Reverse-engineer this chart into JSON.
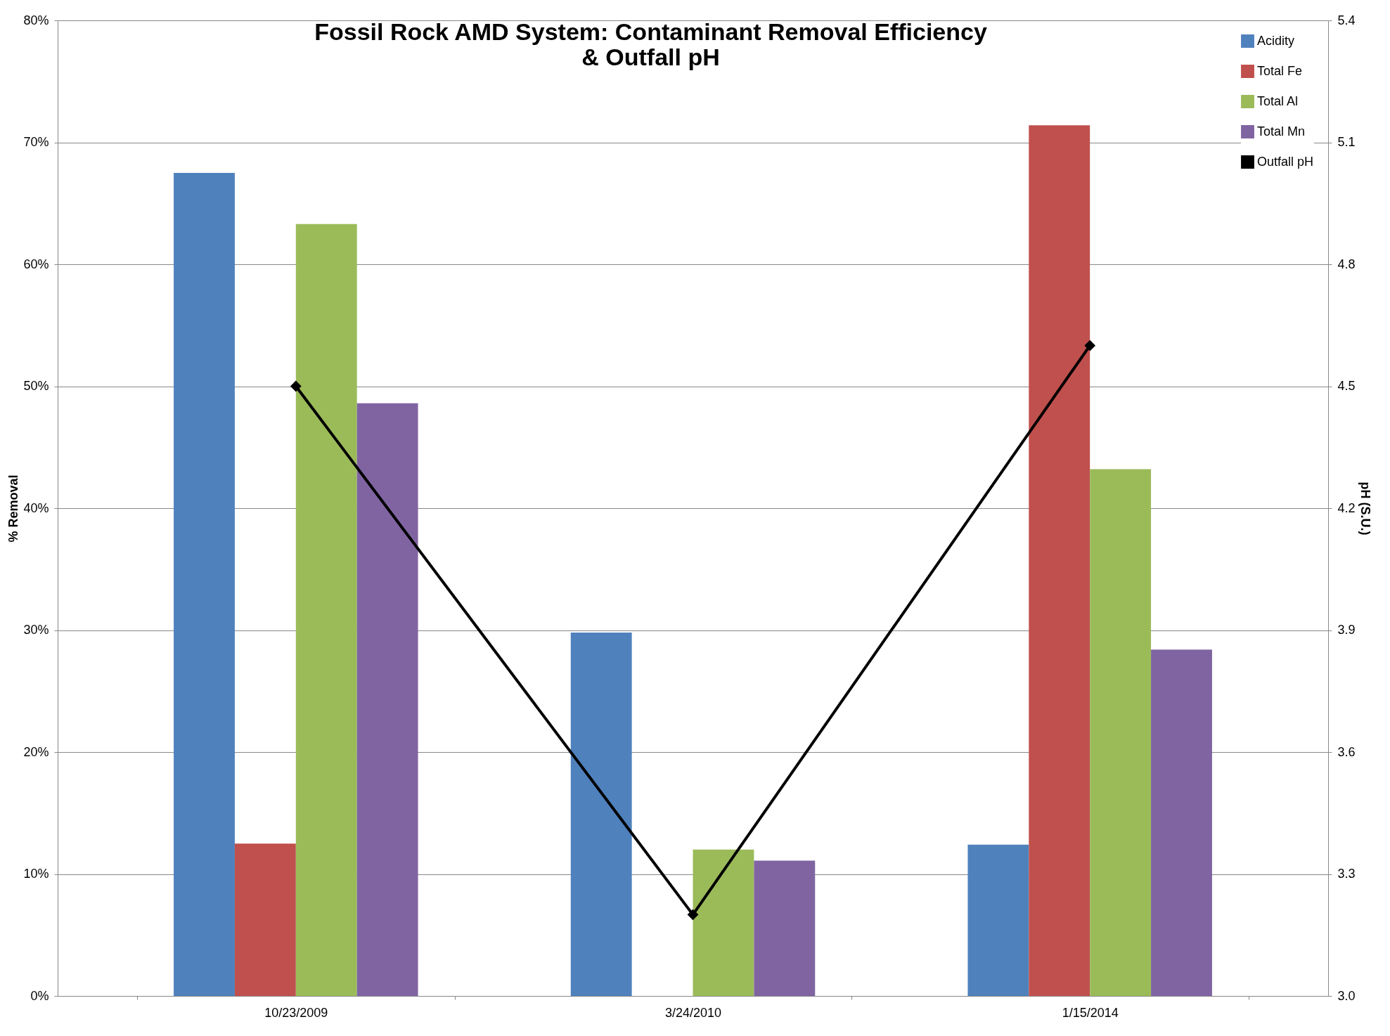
{
  "chart_data": {
    "type": "bar",
    "title": [
      "Fossil Rock AMD System: Contaminant Removal Efficiency",
      "& Outfall pH"
    ],
    "categories": [
      "10/23/2009",
      "3/24/2010",
      "1/15/2014"
    ],
    "ylabel": "% Removal",
    "y2label": "pH (S.U.)",
    "series": [
      {
        "name": "Acidity",
        "color": "#4f81bd",
        "values": [
          67.5,
          29.8,
          12.4
        ]
      },
      {
        "name": "Total Fe",
        "color": "#c0504d",
        "values": [
          12.5,
          0,
          71.4
        ]
      },
      {
        "name": "Total Al",
        "color": "#9bbb59",
        "values": [
          63.3,
          12.0,
          43.2
        ]
      },
      {
        "name": "Total Mn",
        "color": "#8064a2",
        "values": [
          48.6,
          11.1,
          28.4
        ]
      },
      {
        "name": "Outfall pH",
        "color": "#000000",
        "type": "line",
        "axis": "y2",
        "marker": "diamond",
        "line_style": "solid",
        "values": [
          4.5,
          3.2,
          4.6
        ]
      }
    ],
    "ylim": [
      0,
      80
    ],
    "yticks": [
      {
        "value": 0,
        "label": "0%"
      },
      {
        "value": 10,
        "label": "10%"
      },
      {
        "value": 20,
        "label": "20%"
      },
      {
        "value": 30,
        "label": "30%"
      },
      {
        "value": 40,
        "label": "40%"
      },
      {
        "value": 50,
        "label": "50%"
      },
      {
        "value": 60,
        "label": "60%"
      },
      {
        "value": 70,
        "label": "70%"
      },
      {
        "value": 80,
        "label": "80%"
      }
    ],
    "y2lim": [
      3.0,
      5.4
    ],
    "y2ticks": [
      {
        "value": 3.0,
        "label": "3.0"
      },
      3.3,
      3.6,
      3.9,
      4.2,
      4.5,
      4.8,
      5.1,
      5.4
    ],
    "grid": "y",
    "legend": "top right"
  }
}
